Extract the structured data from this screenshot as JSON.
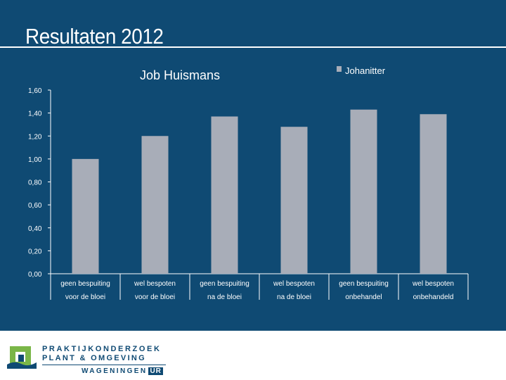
{
  "slide": {
    "title": "Resultaten 2012"
  },
  "chart_data": {
    "type": "bar",
    "title": "Job Huismans",
    "categories": [
      [
        "geen bespuiting",
        "voor de bloei"
      ],
      [
        "wel bespoten",
        "voor de bloei"
      ],
      [
        "geen bespuiting",
        "na de bloei"
      ],
      [
        "wel bespoten",
        "na de bloei"
      ],
      [
        "geen bespuiting",
        "onbehandel"
      ],
      [
        "wel bespoten",
        "onbehandeld"
      ]
    ],
    "series": [
      {
        "name": "Johanitter",
        "values": [
          1.0,
          1.2,
          1.37,
          1.28,
          1.43,
          1.39
        ]
      }
    ],
    "yticks": [
      "0,00",
      "0,20",
      "0,40",
      "0,60",
      "0,80",
      "1,00",
      "1,20",
      "1,40",
      "1,60"
    ],
    "ylim": [
      0,
      1.6
    ],
    "legend_position": "top-right",
    "grid": false,
    "colors": {
      "bar": "#a8adb8",
      "axis": "#ffffff",
      "text": "#ffffff"
    }
  },
  "footer": {
    "logo_line1": "PRAKTIJKONDERZOEK",
    "logo_line2": "PLANT & OMGEVING",
    "logo_org": "WAGENINGEN",
    "logo_ur": "UR",
    "colors": {
      "brand": "#0f4a73",
      "logo_green": "#7ab648"
    }
  }
}
